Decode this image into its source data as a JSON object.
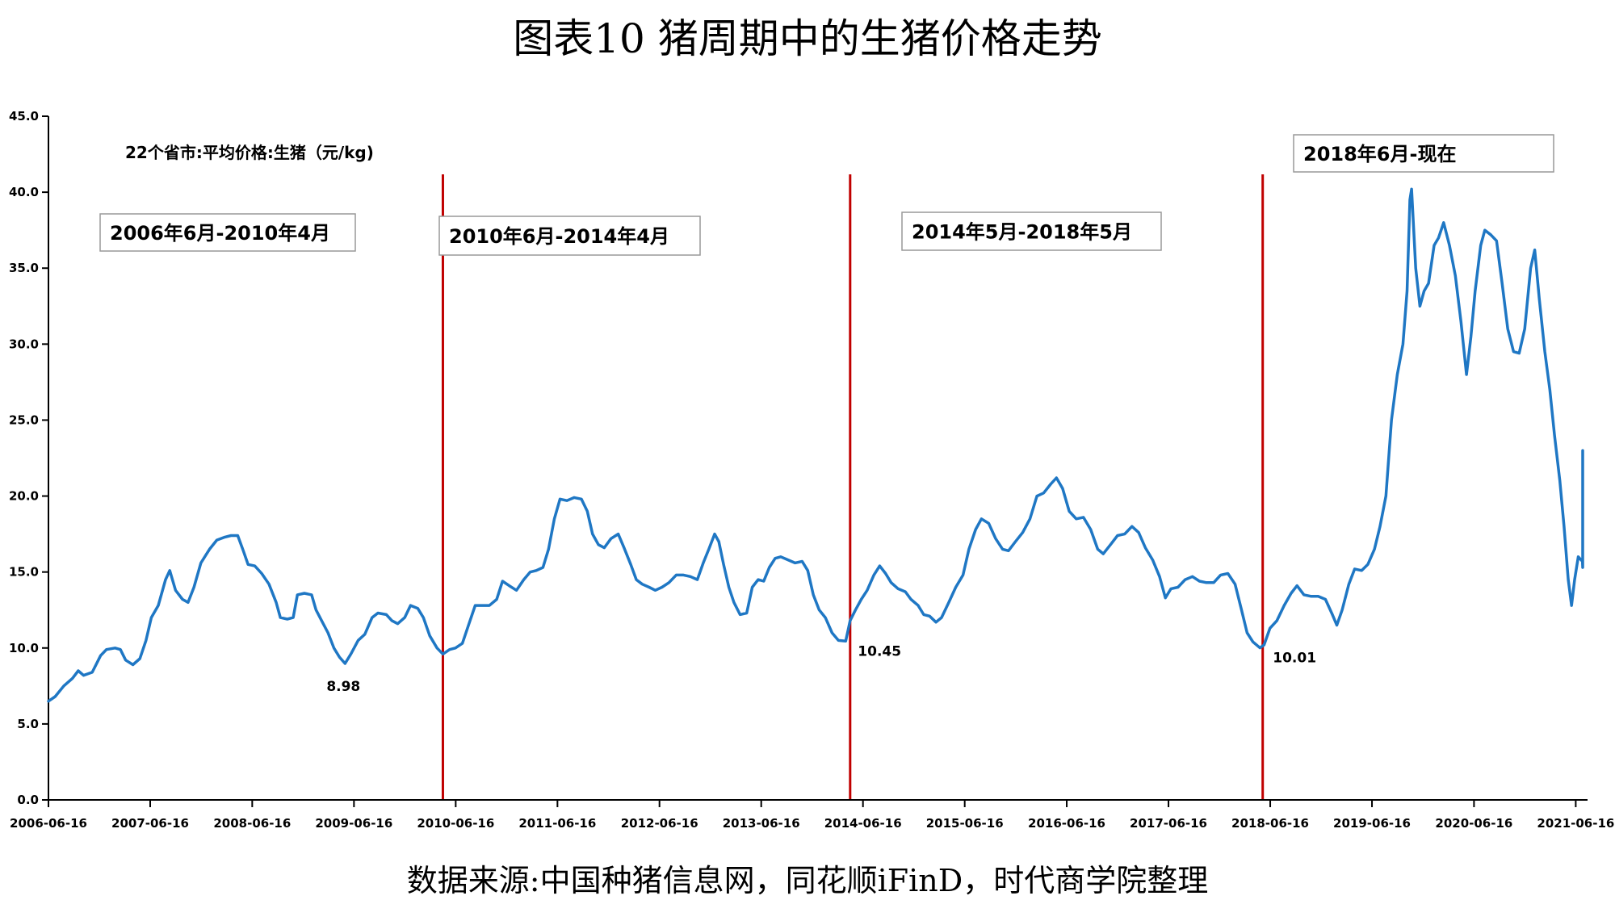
{
  "title": "图表10 猪周期中的生猪价格走势",
  "source": "数据来源:中国种猪信息网，同花顺iFinD，时代商学院整理",
  "chart_data": {
    "type": "line",
    "series_label": "22个省市:平均价格:生猪（元/kg)",
    "ylim": [
      0,
      45
    ],
    "ytick_labels": [
      "0.0",
      "5.0",
      "10.0",
      "15.0",
      "20.0",
      "25.0",
      "30.0",
      "35.0",
      "40.0",
      "45.0"
    ],
    "xtick_labels": [
      "2006-06-16",
      "2007-06-16",
      "2008-06-16",
      "2009-06-16",
      "2010-06-16",
      "2011-06-16",
      "2012-06-16",
      "2013-06-16",
      "2014-06-16",
      "2015-06-16",
      "2016-06-16",
      "2017-06-16",
      "2018-06-16",
      "2019-06-16",
      "2020-06-16",
      "2021-06-16"
    ],
    "x_range": [
      "2006-06-16",
      "2021-09-01"
    ],
    "grid": false,
    "line_color": "#1f77c4",
    "divider_color": "#c00000",
    "dividers": [
      "2010-05-01",
      "2014-05-01",
      "2018-05-20"
    ],
    "period_labels": [
      "2006年6月-2010年4月",
      "2010年6月-2014年4月",
      "2014年5月-2018年5月",
      "2018年6月-现在"
    ],
    "annotations": [
      {
        "date": "2009-05-15",
        "value": 8.98,
        "text": "8.98"
      },
      {
        "date": "2014-04-15",
        "value": 10.45,
        "text": "10.45"
      },
      {
        "date": "2018-05-10",
        "value": 10.01,
        "text": "10.01"
      }
    ],
    "points": [
      [
        "2006-06-16",
        6.5
      ],
      [
        "2006-07-10",
        6.8
      ],
      [
        "2006-08-10",
        7.5
      ],
      [
        "2006-09-10",
        8.0
      ],
      [
        "2006-10-01",
        8.5
      ],
      [
        "2006-10-20",
        8.2
      ],
      [
        "2006-11-20",
        8.4
      ],
      [
        "2006-12-20",
        9.5
      ],
      [
        "2007-01-10",
        9.9
      ],
      [
        "2007-02-10",
        10.0
      ],
      [
        "2007-03-01",
        9.9
      ],
      [
        "2007-03-20",
        9.2
      ],
      [
        "2007-04-15",
        8.9
      ],
      [
        "2007-05-10",
        9.3
      ],
      [
        "2007-06-01",
        10.5
      ],
      [
        "2007-06-20",
        12.0
      ],
      [
        "2007-07-15",
        12.8
      ],
      [
        "2007-08-10",
        14.5
      ],
      [
        "2007-08-25",
        15.1
      ],
      [
        "2007-09-15",
        13.8
      ],
      [
        "2007-10-10",
        13.2
      ],
      [
        "2007-10-30",
        13.0
      ],
      [
        "2007-11-20",
        14.0
      ],
      [
        "2007-12-15",
        15.6
      ],
      [
        "2008-01-15",
        16.5
      ],
      [
        "2008-02-10",
        17.1
      ],
      [
        "2008-03-10",
        17.3
      ],
      [
        "2008-04-01",
        17.4
      ],
      [
        "2008-04-25",
        17.4
      ],
      [
        "2008-05-15",
        16.4
      ],
      [
        "2008-06-01",
        15.5
      ],
      [
        "2008-06-25",
        15.4
      ],
      [
        "2008-07-20",
        14.9
      ],
      [
        "2008-08-15",
        14.2
      ],
      [
        "2008-09-10",
        13.0
      ],
      [
        "2008-09-25",
        12.0
      ],
      [
        "2008-10-20",
        11.9
      ],
      [
        "2008-11-10",
        12.0
      ],
      [
        "2008-11-25",
        13.5
      ],
      [
        "2008-12-20",
        13.6
      ],
      [
        "2009-01-15",
        13.5
      ],
      [
        "2009-01-31",
        12.5
      ],
      [
        "2009-02-20",
        11.8
      ],
      [
        "2009-03-15",
        11.0
      ],
      [
        "2009-04-05",
        10.0
      ],
      [
        "2009-04-25",
        9.4
      ],
      [
        "2009-05-15",
        8.98
      ],
      [
        "2009-06-05",
        9.6
      ],
      [
        "2009-07-01",
        10.5
      ],
      [
        "2009-07-25",
        10.9
      ],
      [
        "2009-08-20",
        12.0
      ],
      [
        "2009-09-10",
        12.3
      ],
      [
        "2009-10-10",
        12.2
      ],
      [
        "2009-10-30",
        11.8
      ],
      [
        "2009-11-20",
        11.6
      ],
      [
        "2009-12-15",
        12.0
      ],
      [
        "2010-01-05",
        12.8
      ],
      [
        "2010-01-31",
        12.6
      ],
      [
        "2010-02-20",
        12.0
      ],
      [
        "2010-03-15",
        10.8
      ],
      [
        "2010-04-10",
        10.0
      ],
      [
        "2010-05-01",
        9.6
      ],
      [
        "2010-05-25",
        9.9
      ],
      [
        "2010-06-15",
        10.0
      ],
      [
        "2010-07-10",
        10.3
      ],
      [
        "2010-08-01",
        11.5
      ],
      [
        "2010-08-25",
        12.8
      ],
      [
        "2010-09-20",
        12.8
      ],
      [
        "2010-10-15",
        12.8
      ],
      [
        "2010-11-10",
        13.2
      ],
      [
        "2010-12-01",
        14.4
      ],
      [
        "2010-12-25",
        14.1
      ],
      [
        "2011-01-20",
        13.8
      ],
      [
        "2011-02-15",
        14.5
      ],
      [
        "2011-03-10",
        15.0
      ],
      [
        "2011-04-01",
        15.1
      ],
      [
        "2011-04-25",
        15.3
      ],
      [
        "2011-05-15",
        16.5
      ],
      [
        "2011-06-05",
        18.5
      ],
      [
        "2011-06-25",
        19.8
      ],
      [
        "2011-07-20",
        19.7
      ],
      [
        "2011-08-15",
        19.9
      ],
      [
        "2011-09-10",
        19.8
      ],
      [
        "2011-10-01",
        19.0
      ],
      [
        "2011-10-20",
        17.5
      ],
      [
        "2011-11-10",
        16.8
      ],
      [
        "2011-12-01",
        16.6
      ],
      [
        "2011-12-25",
        17.2
      ],
      [
        "2012-01-20",
        17.5
      ],
      [
        "2012-02-10",
        16.6
      ],
      [
        "2012-03-05",
        15.5
      ],
      [
        "2012-03-25",
        14.5
      ],
      [
        "2012-04-15",
        14.2
      ],
      [
        "2012-05-10",
        14.0
      ],
      [
        "2012-06-01",
        13.8
      ],
      [
        "2012-06-25",
        14.0
      ],
      [
        "2012-07-20",
        14.3
      ],
      [
        "2012-08-15",
        14.8
      ],
      [
        "2012-09-10",
        14.8
      ],
      [
        "2012-10-05",
        14.7
      ],
      [
        "2012-10-30",
        14.5
      ],
      [
        "2012-11-20",
        15.6
      ],
      [
        "2012-12-10",
        16.5
      ],
      [
        "2012-12-31",
        17.5
      ],
      [
        "2013-01-15",
        17.0
      ],
      [
        "2013-02-01",
        15.5
      ],
      [
        "2013-02-20",
        14.0
      ],
      [
        "2013-03-10",
        13.0
      ],
      [
        "2013-04-01",
        12.2
      ],
      [
        "2013-04-25",
        12.3
      ],
      [
        "2013-05-15",
        14.0
      ],
      [
        "2013-06-05",
        14.5
      ],
      [
        "2013-06-25",
        14.4
      ],
      [
        "2013-07-15",
        15.3
      ],
      [
        "2013-08-05",
        15.9
      ],
      [
        "2013-08-25",
        16.0
      ],
      [
        "2013-09-20",
        15.8
      ],
      [
        "2013-10-15",
        15.6
      ],
      [
        "2013-11-10",
        15.7
      ],
      [
        "2013-11-30",
        15.1
      ],
      [
        "2013-12-20",
        13.5
      ],
      [
        "2014-01-10",
        12.5
      ],
      [
        "2014-02-01",
        12.0
      ],
      [
        "2014-02-25",
        11.0
      ],
      [
        "2014-03-20",
        10.5
      ],
      [
        "2014-04-15",
        10.45
      ],
      [
        "2014-05-01",
        11.8
      ],
      [
        "2014-05-20",
        12.5
      ],
      [
        "2014-06-10",
        13.2
      ],
      [
        "2014-07-01",
        13.8
      ],
      [
        "2014-07-25",
        14.8
      ],
      [
        "2014-08-15",
        15.4
      ],
      [
        "2014-09-05",
        14.9
      ],
      [
        "2014-09-25",
        14.3
      ],
      [
        "2014-10-20",
        13.9
      ],
      [
        "2014-11-15",
        13.7
      ],
      [
        "2014-12-05",
        13.2
      ],
      [
        "2014-12-31",
        12.8
      ],
      [
        "2015-01-20",
        12.2
      ],
      [
        "2015-02-10",
        12.1
      ],
      [
        "2015-03-05",
        11.7
      ],
      [
        "2015-03-25",
        12.0
      ],
      [
        "2015-04-20",
        13.0
      ],
      [
        "2015-05-15",
        14.0
      ],
      [
        "2015-06-10",
        14.8
      ],
      [
        "2015-07-01",
        16.5
      ],
      [
        "2015-07-25",
        17.8
      ],
      [
        "2015-08-15",
        18.5
      ],
      [
        "2015-09-10",
        18.2
      ],
      [
        "2015-10-05",
        17.2
      ],
      [
        "2015-10-30",
        16.5
      ],
      [
        "2015-11-20",
        16.4
      ],
      [
        "2015-12-15",
        17.0
      ],
      [
        "2016-01-10",
        17.6
      ],
      [
        "2016-02-05",
        18.5
      ],
      [
        "2016-03-01",
        20.0
      ],
      [
        "2016-03-25",
        20.2
      ],
      [
        "2016-04-20",
        20.8
      ],
      [
        "2016-05-10",
        21.2
      ],
      [
        "2016-06-01",
        20.5
      ],
      [
        "2016-06-25",
        19.0
      ],
      [
        "2016-07-20",
        18.5
      ],
      [
        "2016-08-15",
        18.6
      ],
      [
        "2016-09-10",
        17.8
      ],
      [
        "2016-10-05",
        16.5
      ],
      [
        "2016-10-25",
        16.2
      ],
      [
        "2016-11-20",
        16.8
      ],
      [
        "2016-12-15",
        17.4
      ],
      [
        "2017-01-10",
        17.5
      ],
      [
        "2017-02-05",
        18.0
      ],
      [
        "2017-03-01",
        17.6
      ],
      [
        "2017-03-25",
        16.6
      ],
      [
        "2017-04-20",
        15.8
      ],
      [
        "2017-05-15",
        14.7
      ],
      [
        "2017-06-05",
        13.3
      ],
      [
        "2017-06-25",
        13.9
      ],
      [
        "2017-07-20",
        14.0
      ],
      [
        "2017-08-15",
        14.5
      ],
      [
        "2017-09-10",
        14.7
      ],
      [
        "2017-10-05",
        14.4
      ],
      [
        "2017-10-30",
        14.3
      ],
      [
        "2017-11-25",
        14.3
      ],
      [
        "2017-12-20",
        14.8
      ],
      [
        "2018-01-15",
        14.9
      ],
      [
        "2018-02-10",
        14.2
      ],
      [
        "2018-03-05",
        12.5
      ],
      [
        "2018-03-25",
        11.0
      ],
      [
        "2018-04-15",
        10.4
      ],
      [
        "2018-05-10",
        10.01
      ],
      [
        "2018-05-25",
        10.2
      ],
      [
        "2018-06-15",
        11.3
      ],
      [
        "2018-07-10",
        11.8
      ],
      [
        "2018-08-05",
        12.8
      ],
      [
        "2018-08-30",
        13.6
      ],
      [
        "2018-09-20",
        14.1
      ],
      [
        "2018-10-15",
        13.5
      ],
      [
        "2018-11-10",
        13.4
      ],
      [
        "2018-12-05",
        13.4
      ],
      [
        "2018-12-31",
        13.2
      ],
      [
        "2019-01-25",
        12.2
      ],
      [
        "2019-02-10",
        11.5
      ],
      [
        "2019-03-01",
        12.5
      ],
      [
        "2019-03-25",
        14.2
      ],
      [
        "2019-04-15",
        15.2
      ],
      [
        "2019-05-10",
        15.1
      ],
      [
        "2019-06-01",
        15.5
      ],
      [
        "2019-06-25",
        16.5
      ],
      [
        "2019-07-15",
        18.0
      ],
      [
        "2019-08-05",
        20.0
      ],
      [
        "2019-08-25",
        25.0
      ],
      [
        "2019-09-15",
        28.0
      ],
      [
        "2019-10-05",
        30.0
      ],
      [
        "2019-10-20",
        33.5
      ],
      [
        "2019-10-30",
        39.5
      ],
      [
        "2019-11-05",
        40.2
      ],
      [
        "2019-11-20",
        35.0
      ],
      [
        "2019-12-05",
        32.5
      ],
      [
        "2019-12-20",
        33.5
      ],
      [
        "2020-01-05",
        34.0
      ],
      [
        "2020-01-25",
        36.5
      ],
      [
        "2020-02-10",
        37.0
      ],
      [
        "2020-02-28",
        38.0
      ],
      [
        "2020-03-20",
        36.5
      ],
      [
        "2020-04-10",
        34.5
      ],
      [
        "2020-04-30",
        31.5
      ],
      [
        "2020-05-20",
        28.0
      ],
      [
        "2020-06-05",
        30.5
      ],
      [
        "2020-06-20",
        33.5
      ],
      [
        "2020-07-10",
        36.5
      ],
      [
        "2020-07-25",
        37.5
      ],
      [
        "2020-08-15",
        37.2
      ],
      [
        "2020-09-05",
        36.8
      ],
      [
        "2020-09-25",
        34.0
      ],
      [
        "2020-10-15",
        31.0
      ],
      [
        "2020-11-05",
        29.5
      ],
      [
        "2020-11-25",
        29.4
      ],
      [
        "2020-12-15",
        31.0
      ],
      [
        "2021-01-05",
        35.0
      ],
      [
        "2021-01-20",
        36.2
      ],
      [
        "2021-02-05",
        33.0
      ],
      [
        "2021-02-25",
        29.5
      ],
      [
        "2021-03-15",
        27.0
      ],
      [
        "2021-04-01",
        24.0
      ],
      [
        "2021-04-20",
        21.0
      ],
      [
        "2021-05-05",
        18.0
      ],
      [
        "2021-05-20",
        14.5
      ],
      [
        "2021-06-01",
        12.8
      ],
      [
        "2021-06-12",
        14.5
      ],
      [
        "2021-06-25",
        16.0
      ],
      [
        "2021-07-10",
        15.7
      ],
      [
        "2021-07-25",
        15.3
      ],
      [
        "2021-08-05",
        16.5
      ],
      [
        "2021-08-10",
        23.0
      ]
    ]
  }
}
